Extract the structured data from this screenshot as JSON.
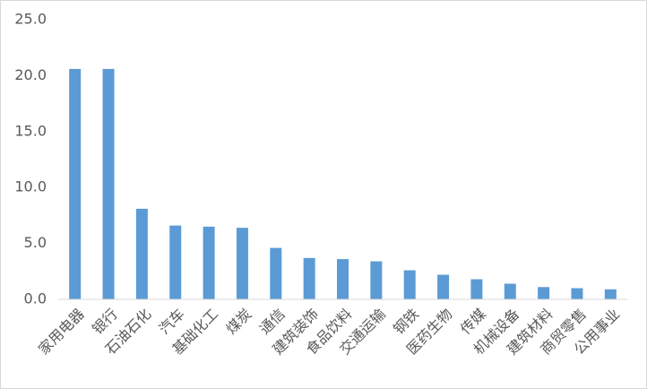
{
  "chart_data": {
    "type": "bar",
    "categories": [
      "家用电器",
      "银行",
      "石油石化",
      "汽车",
      "基础化工",
      "煤炭",
      "通信",
      "建筑装饰",
      "食品饮料",
      "交通运输",
      "钢铁",
      "医药生物",
      "传媒",
      "机械设备",
      "建筑材料",
      "商贸零售",
      "公用事业"
    ],
    "values": [
      20.6,
      20.6,
      8.1,
      6.6,
      6.5,
      6.4,
      4.6,
      3.7,
      3.6,
      3.4,
      2.6,
      2.2,
      1.8,
      1.4,
      1.1,
      1.0,
      0.9
    ],
    "color": "#5b9bd5",
    "ylim": [
      0,
      25
    ],
    "yticks": [
      {
        "value": 0,
        "label": "0.0"
      },
      {
        "value": 5,
        "label": "5.0"
      },
      {
        "value": 10,
        "label": "10.0"
      },
      {
        "value": 15,
        "label": "15.0"
      },
      {
        "value": 20,
        "label": "20.0"
      },
      {
        "value": 25,
        "label": "25.0"
      }
    ],
    "grid": false
  }
}
